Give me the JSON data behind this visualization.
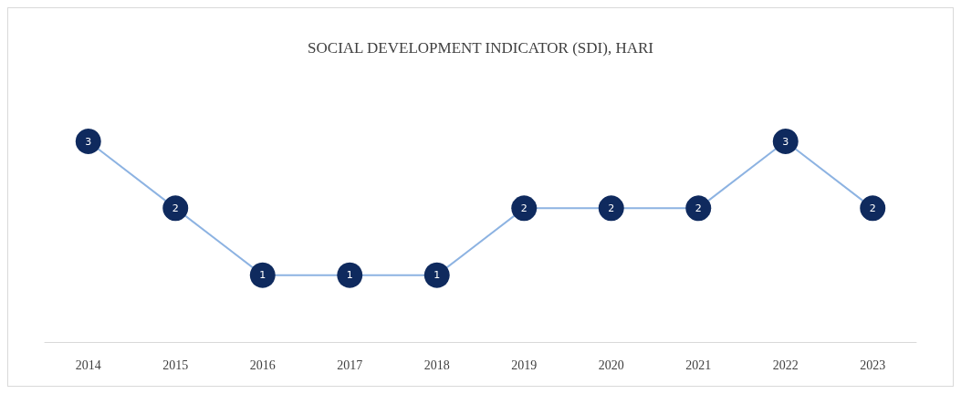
{
  "chart_data": {
    "type": "line",
    "title": "SOCIAL DEVELOPMENT INDICATOR (SDI), HARI",
    "categories": [
      "2014",
      "2015",
      "2016",
      "2017",
      "2018",
      "2019",
      "2020",
      "2021",
      "2022",
      "2023"
    ],
    "series": [
      {
        "color": "#8db3e2",
        "values": [
          3,
          2,
          1,
          1,
          1,
          2,
          2,
          2,
          3,
          2
        ]
      }
    ],
    "data_labels": true,
    "marker": "circle",
    "grid": false
  }
}
